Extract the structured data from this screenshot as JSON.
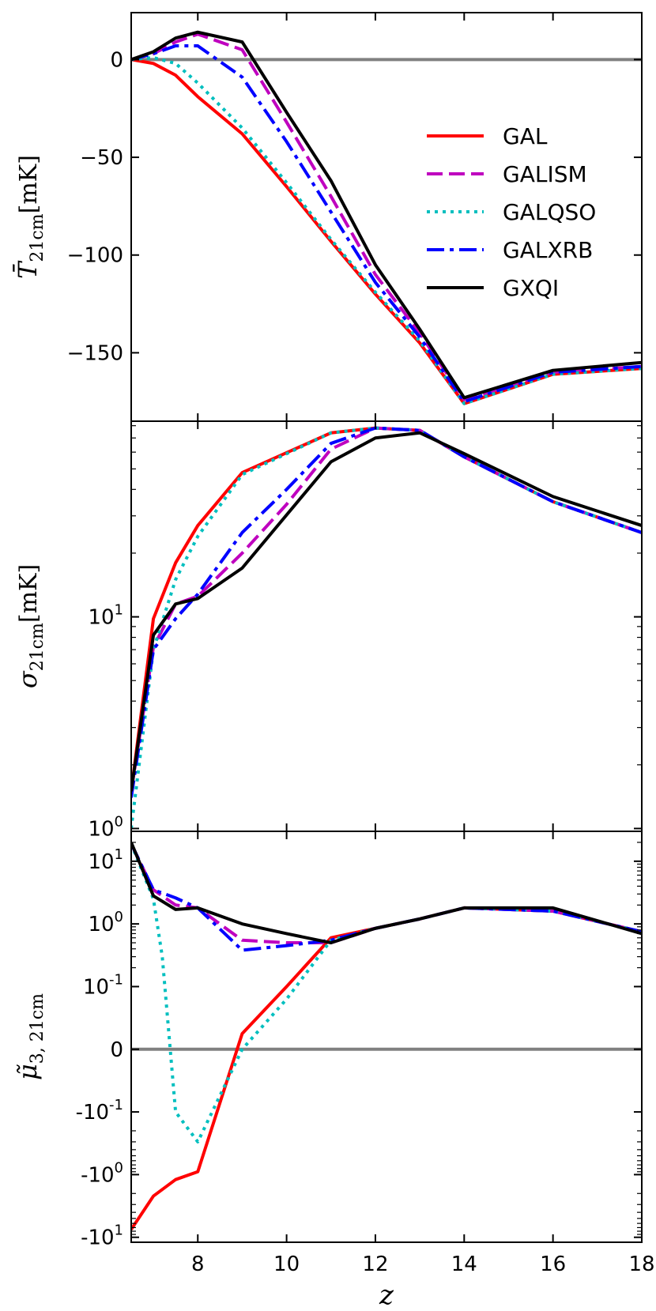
{
  "chart_data": [
    {
      "type": "line",
      "panel": "top",
      "ylabel": "T̄",
      "ylabel_sub": "21cm",
      "ylabel_unit": "[mK]",
      "xlim": [
        6.5,
        18
      ],
      "ylim": [
        -185,
        24
      ],
      "yticks": [
        {
          "v": 0,
          "label": "0"
        },
        {
          "v": -50,
          "label": "−50"
        },
        {
          "v": -100,
          "label": "−100"
        },
        {
          "v": -150,
          "label": "−150"
        }
      ],
      "hline": 0,
      "legend": "center-right",
      "series": [
        {
          "name": "GAL",
          "color": "#ff0000",
          "style": "solid",
          "x": [
            6.5,
            7,
            7.5,
            8,
            9,
            10,
            11,
            12,
            13,
            14,
            16,
            18
          ],
          "y": [
            0,
            -2,
            -8,
            -19,
            -38,
            -65,
            -93,
            -120,
            -145,
            -176,
            -161,
            -158
          ]
        },
        {
          "name": "GALISM",
          "color": "#bf00bf",
          "style": "dashed",
          "x": [
            6.5,
            7,
            7.5,
            8,
            9,
            10,
            11,
            12,
            13,
            14,
            16,
            18
          ],
          "y": [
            0,
            3,
            9,
            13,
            5,
            -32,
            -70,
            -110,
            -140,
            -174,
            -160,
            -157
          ]
        },
        {
          "name": "GALQSO",
          "color": "#00bfbf",
          "style": "dotted",
          "x": [
            6.5,
            7,
            7.5,
            8,
            9,
            10,
            11,
            12,
            13,
            14,
            16,
            18
          ],
          "y": [
            0,
            1,
            -2,
            -12,
            -35,
            -63,
            -92,
            -119,
            -144,
            -176,
            -161,
            -158
          ]
        },
        {
          "name": "GALXRB",
          "color": "#0000ff",
          "style": "dashdot",
          "x": [
            6.5,
            7,
            7.5,
            8,
            9,
            10,
            11,
            12,
            13,
            14,
            16,
            18
          ],
          "y": [
            0,
            3,
            7,
            7,
            -9,
            -42,
            -78,
            -114,
            -142,
            -175,
            -160,
            -157
          ]
        },
        {
          "name": "GXQI",
          "color": "#000000",
          "style": "solid",
          "x": [
            6.5,
            7,
            7.5,
            8,
            9,
            10,
            11,
            12,
            13,
            14,
            16,
            18
          ],
          "y": [
            0,
            4,
            11,
            14,
            9,
            -27,
            -62,
            -105,
            -138,
            -173,
            -159,
            -155
          ]
        }
      ]
    },
    {
      "type": "line",
      "panel": "middle",
      "yscale": "log",
      "ylabel": "σ",
      "ylabel_sub": "21cm",
      "ylabel_unit": "[mK]",
      "xlim": [
        6.5,
        18
      ],
      "ylim": [
        0.97,
        84
      ],
      "yticks": [
        {
          "v": 1,
          "label": "10",
          "exp": "0"
        },
        {
          "v": 10,
          "label": "10",
          "exp": "1"
        }
      ],
      "series": [
        {
          "name": "GAL",
          "color": "#ff0000",
          "style": "solid",
          "x": [
            6.5,
            7,
            7.5,
            8,
            9,
            11,
            12,
            13,
            14,
            16,
            18
          ],
          "y": [
            1.5,
            9.8,
            18,
            27,
            48,
            74,
            78,
            76,
            57,
            35,
            25
          ]
        },
        {
          "name": "GALISM",
          "color": "#bf00bf",
          "style": "dashed",
          "x": [
            6.5,
            7,
            7.5,
            8,
            9,
            10,
            11,
            12,
            13,
            14,
            16,
            18
          ],
          "y": [
            1.5,
            7.2,
            11.5,
            12.5,
            20,
            34,
            62,
            78,
            76,
            57,
            35,
            25
          ]
        },
        {
          "name": "GALQSO",
          "color": "#00bfbf",
          "style": "dotted",
          "x": [
            6.5,
            7,
            7.5,
            8,
            9,
            11,
            12,
            13,
            14,
            16,
            18
          ],
          "y": [
            1.0,
            7.0,
            15,
            24,
            47,
            74,
            78,
            76,
            57,
            35,
            25
          ]
        },
        {
          "name": "GALXRB",
          "color": "#0000ff",
          "style": "dashdot",
          "x": [
            6.5,
            7,
            7.5,
            8,
            9,
            10,
            11,
            12,
            13,
            14,
            16,
            18
          ],
          "y": [
            1.4,
            7.0,
            9.8,
            12.8,
            25,
            40,
            66,
            78,
            76,
            57,
            35,
            25
          ]
        },
        {
          "name": "GXQI",
          "color": "#000000",
          "style": "solid",
          "x": [
            6.5,
            7,
            7.5,
            8,
            9,
            11,
            12,
            13,
            14,
            16,
            18
          ],
          "y": [
            1.5,
            8.2,
            11.5,
            12.2,
            17,
            54,
            70,
            74,
            59,
            37,
            27
          ]
        }
      ]
    },
    {
      "type": "line",
      "panel": "bottom",
      "yscale": "symlog",
      "linthresh": 0.1,
      "ylabel": "μ̃",
      "ylabel_sub": "3, 21cm",
      "xlabel": "z",
      "xlim": [
        6.5,
        18
      ],
      "ylim": [
        -12,
        30
      ],
      "xticks": [
        8,
        10,
        12,
        14,
        16,
        18
      ],
      "yticks": [
        {
          "v": 10,
          "label": "10",
          "exp": "1"
        },
        {
          "v": 1,
          "label": "10",
          "exp": "0"
        },
        {
          "v": 0.1,
          "label": "10",
          "exp": "-1"
        },
        {
          "v": 0,
          "label": "0"
        },
        {
          "v": -0.1,
          "label": "-10",
          "exp": "-1"
        },
        {
          "v": -1,
          "label": "-10",
          "exp": "0"
        },
        {
          "v": -10,
          "label": "-10",
          "exp": "1"
        }
      ],
      "hline": 0,
      "series": [
        {
          "name": "GAL",
          "color": "#ff0000",
          "style": "solid",
          "x": [
            6.5,
            7,
            7.5,
            8,
            9,
            10,
            11,
            12,
            13,
            14,
            16,
            18
          ],
          "y": [
            -7.5,
            -2.2,
            -1.2,
            -0.9,
            0.025,
            0.1,
            0.6,
            0.85,
            1.2,
            1.8,
            1.6,
            0.75
          ]
        },
        {
          "name": "GALISM",
          "color": "#bf00bf",
          "style": "dashed",
          "x": [
            6.5,
            7,
            7.5,
            8,
            9,
            10,
            11,
            12,
            13,
            14,
            16,
            18
          ],
          "y": [
            19,
            3.5,
            2.0,
            1.8,
            0.55,
            0.5,
            0.5,
            0.85,
            1.2,
            1.8,
            1.6,
            0.75
          ]
        },
        {
          "name": "GALQSO",
          "color": "#00bfbf",
          "style": "dotted",
          "x": [
            6.5,
            7,
            7.2,
            7.5,
            8,
            9,
            10,
            11,
            12,
            13,
            14,
            16,
            18
          ],
          "y": [
            19,
            2.5,
            0.3,
            -0.1,
            -0.3,
            0.0,
            0.08,
            0.55,
            0.85,
            1.2,
            1.8,
            1.6,
            0.75
          ]
        },
        {
          "name": "GALXRB",
          "color": "#0000ff",
          "style": "dashdot",
          "x": [
            6.5,
            7,
            7.5,
            8,
            9,
            10,
            11,
            12,
            13,
            14,
            16,
            18
          ],
          "y": [
            19,
            3.5,
            2.6,
            1.8,
            0.38,
            0.45,
            0.55,
            0.85,
            1.2,
            1.8,
            1.6,
            0.75
          ]
        },
        {
          "name": "GXQI",
          "color": "#000000",
          "style": "solid",
          "x": [
            6.5,
            7,
            7.5,
            8,
            9,
            10,
            11,
            12,
            13,
            14,
            16,
            18
          ],
          "y": [
            20,
            2.8,
            1.7,
            1.8,
            1.0,
            0.7,
            0.5,
            0.85,
            1.2,
            1.8,
            1.8,
            0.7
          ]
        }
      ]
    }
  ]
}
